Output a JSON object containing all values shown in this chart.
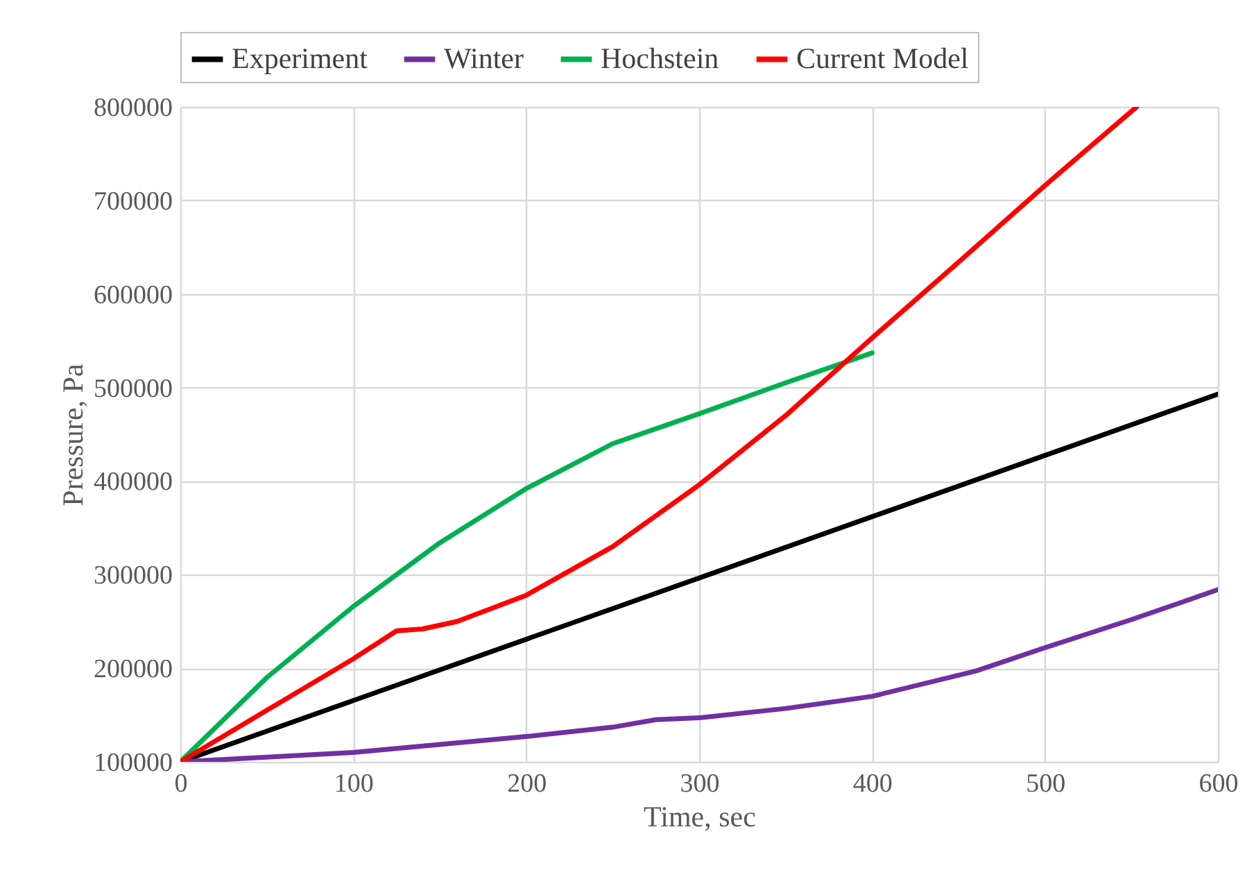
{
  "chart_data": {
    "type": "line",
    "xlabel": "Time, sec",
    "ylabel": "Pressure, Pa",
    "xlim": [
      0,
      600
    ],
    "xticks": [
      0,
      100,
      200,
      300,
      400,
      500,
      600
    ],
    "ylim": [
      100000,
      800000
    ],
    "yticks": [
      100000,
      200000,
      300000,
      400000,
      500000,
      600000,
      700000,
      800000
    ],
    "grid": true,
    "legend": "top",
    "marker": "none",
    "line_style": "solid",
    "series": [
      {
        "name": "Experiment",
        "color": "#000000",
        "x": [
          0,
          600
        ],
        "values": [
          100000,
          493000
        ]
      },
      {
        "name": "Winter",
        "color": "#7030a0",
        "x": [
          0,
          100,
          200,
          250,
          275,
          300,
          350,
          400,
          460,
          500,
          550,
          575,
          600
        ],
        "values": [
          100000,
          110000,
          127000,
          137000,
          145000,
          147000,
          157000,
          170000,
          197000,
          222000,
          252000,
          268000,
          284000
        ]
      },
      {
        "name": "Hochstein",
        "color": "#00b050",
        "x": [
          0,
          50,
          100,
          150,
          200,
          250,
          300,
          350,
          400
        ],
        "values": [
          100000,
          190000,
          266000,
          334000,
          392000,
          440000,
          472000,
          505000,
          537000
        ]
      },
      {
        "name": "Current Model",
        "color": "#ff0000",
        "x": [
          0,
          50,
          100,
          125,
          140,
          160,
          200,
          250,
          300,
          350,
          400,
          450,
          500,
          553
        ],
        "values": [
          100000,
          155000,
          210000,
          240000,
          242000,
          250000,
          278000,
          330000,
          396000,
          470000,
          553000,
          634000,
          716000,
          800000
        ]
      }
    ]
  }
}
